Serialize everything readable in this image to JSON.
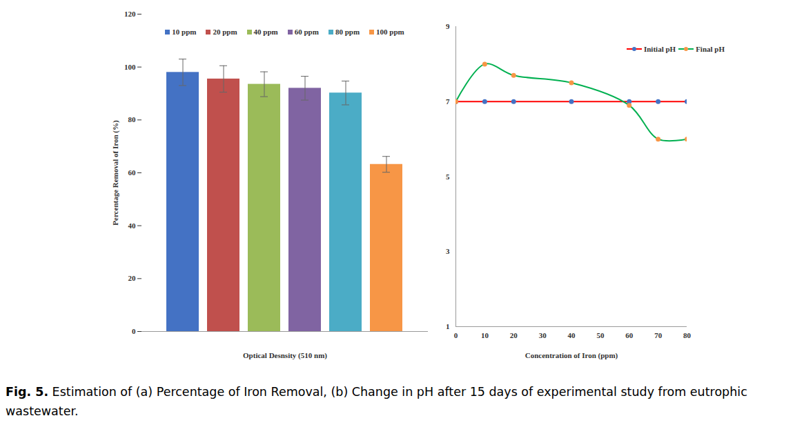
{
  "chart_data": [
    {
      "type": "bar",
      "xlabel": "Optical Desnsity (510 nm)",
      "ylabel": "Percentage Removal of Iron (%)",
      "categories": [
        "10 ppm",
        "20 ppm",
        "40 ppm",
        "60 ppm",
        "80 ppm",
        "100 ppm"
      ],
      "values": [
        98,
        95.5,
        93.5,
        92,
        90.2,
        63.2
      ],
      "errors": [
        5,
        5,
        4.7,
        4.5,
        4.5,
        3
      ],
      "colors": [
        "#4472c4",
        "#c0504d",
        "#9bbb59",
        "#8064a2",
        "#4bacc6",
        "#f79646"
      ],
      "ylim": [
        0,
        120
      ],
      "yticks": [
        0,
        20,
        40,
        60,
        80,
        100,
        120
      ],
      "legend": "top",
      "tick_labels": "y"
    },
    {
      "type": "line",
      "xlabel": "Concentration of Iron (ppm)",
      "x": [
        0,
        10,
        20,
        40,
        60,
        70,
        80
      ],
      "series": [
        {
          "name": "Initial pH",
          "color": "#ff0000",
          "marker": "circle",
          "colors": [
            "#4472c4",
            "#4472c4",
            "#4472c4",
            "#4472c4",
            "#4472c4",
            "#4472c4",
            "#4472c4"
          ],
          "values": [
            7,
            7,
            7,
            7,
            7,
            7,
            7
          ]
        },
        {
          "name": "Final pH",
          "color": "#00b050",
          "marker": "circle",
          "colors": [
            "#f79646",
            "#f79646",
            "#f79646",
            "#f79646",
            "#f79646",
            "#f79646",
            "#f79646"
          ],
          "values": [
            7,
            8,
            7.7,
            7.5,
            6.9,
            6,
            6
          ]
        }
      ],
      "xlim": [
        0,
        80
      ],
      "xticks": [
        0,
        10,
        20,
        30,
        40,
        50,
        60,
        70,
        80
      ],
      "ylim": [
        1,
        9
      ],
      "yticks": [
        1,
        3,
        5,
        7,
        9
      ],
      "legend": "top-right"
    }
  ],
  "caption": {
    "label": "Fig. 5.",
    "text": "Estimation of (a) Percentage of Iron Removal, (b) Change in pH after 15 days of experimental study from eutrophic wastewater."
  }
}
